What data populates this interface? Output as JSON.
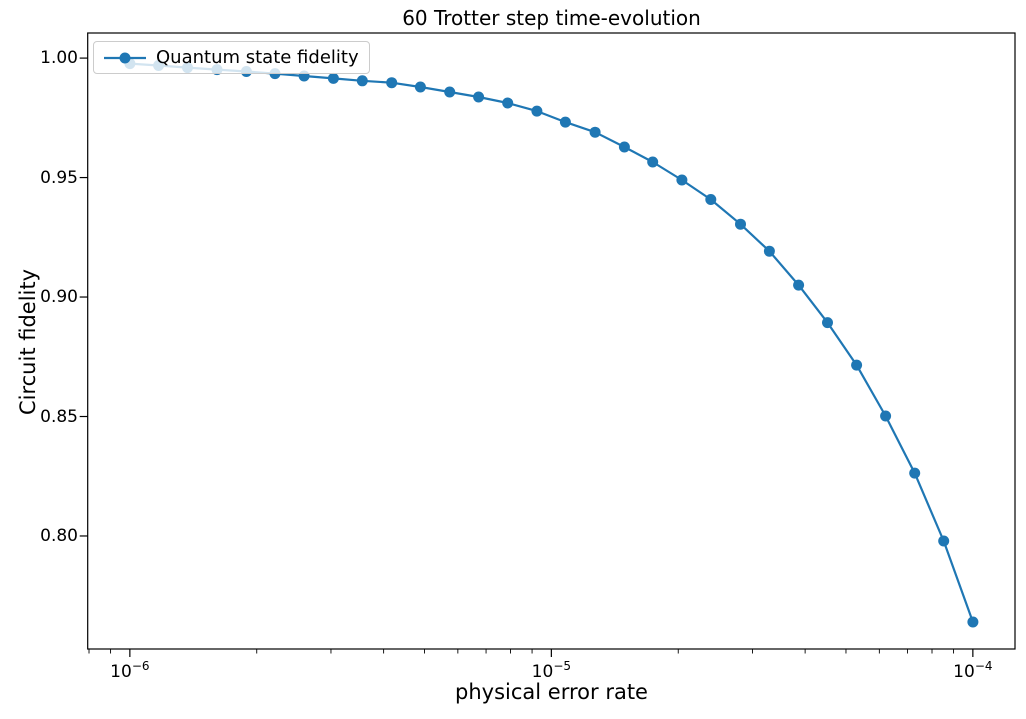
{
  "title": "60 Trotter step time-evolution",
  "chart_data": {
    "type": "line",
    "title": "60 Trotter step time-evolution",
    "xlabel": "physical error rate",
    "ylabel": "Circuit fidelity",
    "x_scale": "log",
    "grid": false,
    "legend_position": "upper left",
    "xlim": [
      7.943e-07,
      0.00012589
    ],
    "ylim": [
      0.7527,
      1.0105
    ],
    "x_major_ticks": [
      {
        "value": 1e-06,
        "base": "10",
        "exp": "−6"
      },
      {
        "value": 1e-05,
        "base": "10",
        "exp": "−5"
      },
      {
        "value": 0.0001,
        "base": "10",
        "exp": "−4"
      }
    ],
    "x_minor_subs": [
      2,
      3,
      4,
      5,
      6,
      7,
      8,
      9
    ],
    "y_ticks": [
      {
        "value": 1.0,
        "label": "1.00"
      },
      {
        "value": 0.95,
        "label": "0.95"
      },
      {
        "value": 0.9,
        "label": "0.90"
      },
      {
        "value": 0.85,
        "label": "0.85"
      },
      {
        "value": 0.8,
        "label": "0.80"
      }
    ],
    "series": [
      {
        "name": "Quantum state fidelity",
        "color": "#1f77b4",
        "marker": "circle",
        "marker_radius": 5.5,
        "line_width": 2.2,
        "x": [
          1e-06,
          1.17e-06,
          1.37e-06,
          1.61e-06,
          1.89e-06,
          2.21e-06,
          2.59e-06,
          3.04e-06,
          3.56e-06,
          4.18e-06,
          4.89e-06,
          5.74e-06,
          6.72e-06,
          7.88e-06,
          9.24e-06,
          1.08e-05,
          1.27e-05,
          1.49e-05,
          1.74e-05,
          2.04e-05,
          2.39e-05,
          2.81e-05,
          3.29e-05,
          3.86e-05,
          4.52e-05,
          5.3e-05,
          6.21e-05,
          7.28e-05,
          8.53e-05,
          0.0001
        ],
        "y": [
          0.9977,
          0.9969,
          0.996,
          0.9952,
          0.9944,
          0.9935,
          0.9925,
          0.9915,
          0.9905,
          0.9897,
          0.9879,
          0.9858,
          0.9837,
          0.9812,
          0.9778,
          0.9732,
          0.969,
          0.9628,
          0.9565,
          0.949,
          0.9408,
          0.9305,
          0.9192,
          0.905,
          0.8893,
          0.8715,
          0.8502,
          0.8263,
          0.7979,
          0.764
        ]
      }
    ]
  }
}
